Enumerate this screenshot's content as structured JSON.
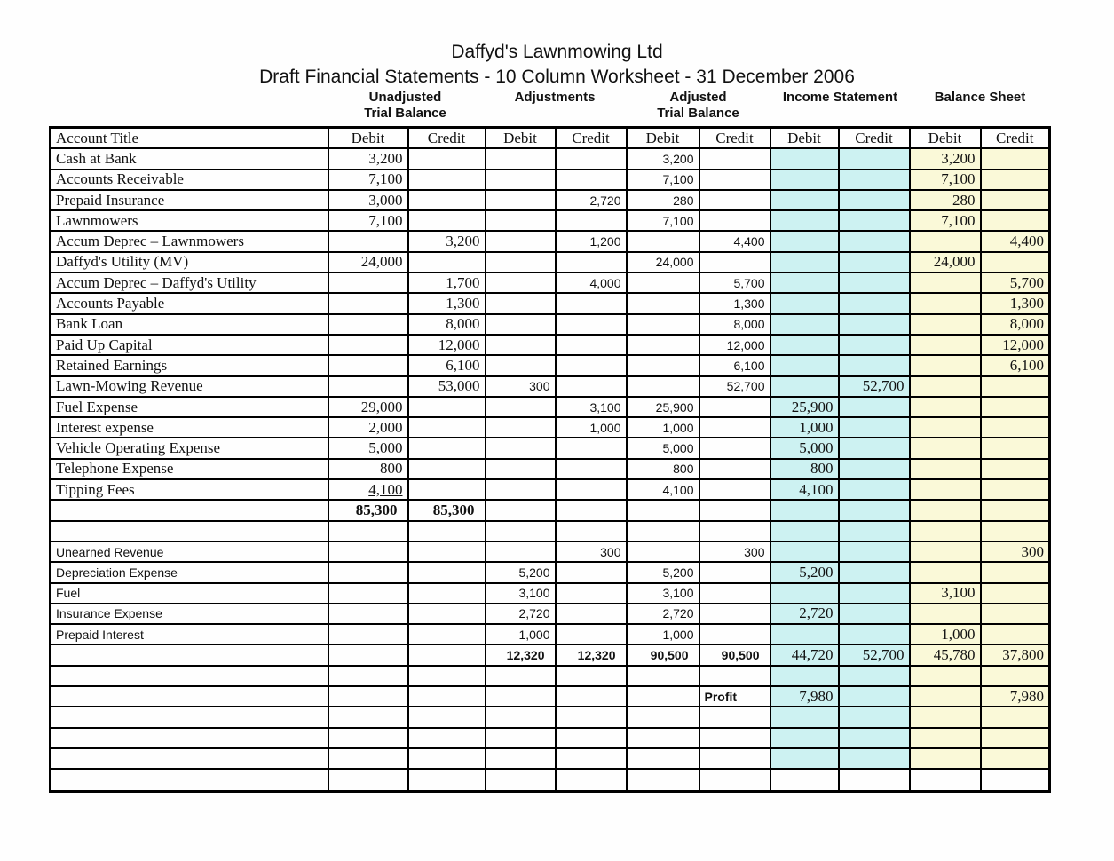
{
  "page": {
    "title": "Daffyd's Lawnmowing Ltd",
    "subtitle": "Draft Financial Statements - 10 Column Worksheet - 31 December 2006"
  },
  "colors": {
    "income_statement_bg": "#CDF2F2",
    "balance_sheet_bg": "#FAF9D8",
    "border": "#000000"
  },
  "column_groups": [
    {
      "line1": "Unadjusted",
      "line2": "Trial Balance"
    },
    {
      "line1": "Adjustments",
      "line2": ""
    },
    {
      "line1": "Adjusted",
      "line2": "Trial Balance"
    },
    {
      "line1": "Income Statement",
      "line2": ""
    },
    {
      "line1": "Balance Sheet",
      "line2": ""
    }
  ],
  "header": {
    "account": "Account Title",
    "debit": "Debit",
    "credit": "Credit"
  },
  "rows": [
    {
      "account": "Cash at Bank",
      "cells": [
        "3,200",
        "",
        "",
        "",
        "3,200",
        "",
        "",
        "",
        "3,200",
        ""
      ]
    },
    {
      "account": "Accounts Receivable",
      "cells": [
        "7,100",
        "",
        "",
        "",
        "7,100",
        "",
        "",
        "",
        "7,100",
        ""
      ]
    },
    {
      "account": "Prepaid Insurance",
      "cells": [
        "3,000",
        "",
        "",
        "2,720",
        "280",
        "",
        "",
        "",
        "280",
        ""
      ]
    },
    {
      "account": "Lawnmowers",
      "cells": [
        "7,100",
        "",
        "",
        "",
        "7,100",
        "",
        "",
        "",
        "7,100",
        ""
      ]
    },
    {
      "account": "Accum Deprec – Lawnmowers",
      "cells": [
        "",
        "3,200",
        "",
        "1,200",
        "",
        "4,400",
        "",
        "",
        "",
        "4,400"
      ]
    },
    {
      "account": "Daffyd's Utility (MV)",
      "cells": [
        "24,000",
        "",
        "",
        "",
        "24,000",
        "",
        "",
        "",
        "24,000",
        ""
      ]
    },
    {
      "account": "Accum Deprec – Daffyd's Utility",
      "cells": [
        "",
        "1,700",
        "",
        "4,000",
        "",
        "5,700",
        "",
        "",
        "",
        "5,700"
      ]
    },
    {
      "account": "Accounts Payable",
      "cells": [
        "",
        "1,300",
        "",
        "",
        "",
        "1,300",
        "",
        "",
        "",
        "1,300"
      ]
    },
    {
      "account": "Bank Loan",
      "cells": [
        "",
        "8,000",
        "",
        "",
        "",
        "8,000",
        "",
        "",
        "",
        "8,000"
      ]
    },
    {
      "account": "Paid Up Capital",
      "cells": [
        "",
        "12,000",
        "",
        "",
        "",
        "12,000",
        "",
        "",
        "",
        "12,000"
      ]
    },
    {
      "account": "Retained Earnings",
      "cells": [
        "",
        "6,100",
        "",
        "",
        "",
        "6,100",
        "",
        "",
        "",
        "6,100"
      ]
    },
    {
      "account": "Lawn-Mowing Revenue",
      "cells": [
        "",
        "53,000",
        "300",
        "",
        "",
        "52,700",
        "",
        "52,700",
        "",
        ""
      ]
    },
    {
      "account": "Fuel Expense",
      "cells": [
        "29,000",
        "",
        "",
        "3,100",
        "25,900",
        "",
        "25,900",
        "",
        "",
        ""
      ]
    },
    {
      "account": "Interest expense",
      "cells": [
        "2,000",
        "",
        "",
        "1,000",
        "1,000",
        "",
        "1,000",
        "",
        "",
        ""
      ]
    },
    {
      "account": "Vehicle Operating Expense",
      "cells": [
        "5,000",
        "",
        "",
        "",
        "5,000",
        "",
        "5,000",
        "",
        "",
        ""
      ]
    },
    {
      "account": "Telephone Expense",
      "cells": [
        "800",
        "",
        "",
        "",
        "800",
        "",
        "800",
        "",
        "",
        ""
      ]
    },
    {
      "account": "Tipping Fees",
      "cells": [
        {
          "v": "4,100",
          "u": true
        },
        "",
        "",
        "",
        "4,100",
        "",
        "4,100",
        "",
        "",
        ""
      ]
    },
    {
      "account": "",
      "cells": [
        {
          "v": "85,300",
          "b": true
        },
        {
          "v": "85,300",
          "b": true
        },
        "",
        "",
        "",
        "",
        "",
        "",
        "",
        ""
      ]
    },
    {
      "account": "",
      "cells": [
        "",
        "",
        "",
        "",
        "",
        "",
        "",
        "",
        "",
        ""
      ]
    },
    {
      "account": "Unearned Revenue",
      "account_font": "sans",
      "cells": [
        "",
        "",
        "",
        "300",
        "",
        "300",
        "",
        "",
        "",
        "300"
      ]
    },
    {
      "account": "Depreciation Expense",
      "account_font": "sans",
      "cells": [
        "",
        "",
        "5,200",
        "",
        "5,200",
        "",
        "5,200",
        "",
        "",
        ""
      ]
    },
    {
      "account": "Fuel",
      "account_font": "sans",
      "cells": [
        "",
        "",
        "3,100",
        "",
        "3,100",
        "",
        "",
        "",
        "3,100",
        ""
      ]
    },
    {
      "account": "Insurance Expense",
      "account_font": "sans",
      "cells": [
        "",
        "",
        "2,720",
        "",
        "2,720",
        "",
        "2,720",
        "",
        "",
        ""
      ]
    },
    {
      "account": "Prepaid Interest",
      "account_font": "sans",
      "cells": [
        "",
        "",
        "1,000",
        "",
        "1,000",
        "",
        "",
        "",
        "1,000",
        ""
      ]
    },
    {
      "account": "",
      "cells": [
        "",
        "",
        {
          "v": "12,320",
          "b": true
        },
        {
          "v": "12,320",
          "b": true
        },
        {
          "v": "90,500",
          "b": true
        },
        {
          "v": "90,500",
          "b": true
        },
        "44,720",
        "52,700",
        "45,780",
        "37,800"
      ]
    },
    {
      "account": "",
      "cells": [
        "",
        "",
        "",
        "",
        "",
        "",
        "",
        "",
        "",
        ""
      ]
    },
    {
      "account": "",
      "cells": [
        "",
        "",
        "",
        "",
        "",
        {
          "v": "Profit",
          "b": true,
          "left": true
        },
        "7,980",
        "",
        "",
        "7,980"
      ]
    },
    {
      "account": "",
      "cells": [
        "",
        "",
        "",
        "",
        "",
        "",
        "",
        "",
        "",
        ""
      ]
    },
    {
      "account": "",
      "cells": [
        "",
        "",
        "",
        "",
        "",
        "",
        "",
        "",
        "",
        ""
      ]
    },
    {
      "account": "",
      "cells": [
        "",
        "",
        "",
        "",
        "",
        "",
        "",
        "",
        "",
        ""
      ]
    },
    {
      "account": "",
      "no_fill": true,
      "thick_top": true,
      "cells": [
        "",
        "",
        "",
        "",
        "",
        "",
        "",
        "",
        "",
        ""
      ]
    }
  ]
}
